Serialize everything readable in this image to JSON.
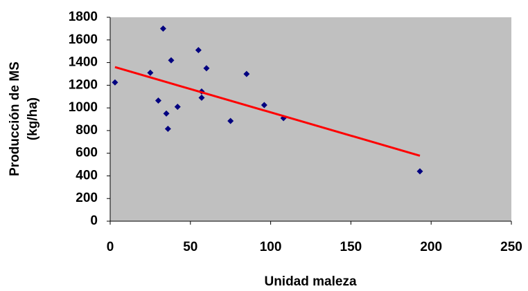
{
  "chart_data": {
    "type": "scatter",
    "xlabel": "Unidad maleza",
    "ylabel": [
      "Producción de MS",
      "(kg/ha)"
    ],
    "series": [
      {
        "color": "#000080",
        "x": [
          3,
          33,
          25,
          38,
          55,
          60,
          57,
          57,
          30,
          42,
          35,
          36,
          75,
          85,
          96,
          108,
          193
        ],
        "values": [
          1225,
          1700,
          1310,
          1420,
          1510,
          1350,
          1145,
          1090,
          1065,
          1010,
          950,
          815,
          885,
          1300,
          1025,
          910,
          440
        ]
      }
    ],
    "trendline": {
      "color": "#ff0000",
      "x": [
        3,
        193
      ],
      "values": [
        1360,
        578
      ]
    },
    "background": "#c0c0c0",
    "xlim": [
      0,
      250
    ],
    "xticks": [
      0,
      50,
      100,
      150,
      200,
      250
    ],
    "ylim": [
      0,
      1800
    ],
    "yticks": [
      0,
      200,
      400,
      600,
      800,
      1000,
      1200,
      1400,
      1600,
      1800
    ],
    "grid": false
  }
}
